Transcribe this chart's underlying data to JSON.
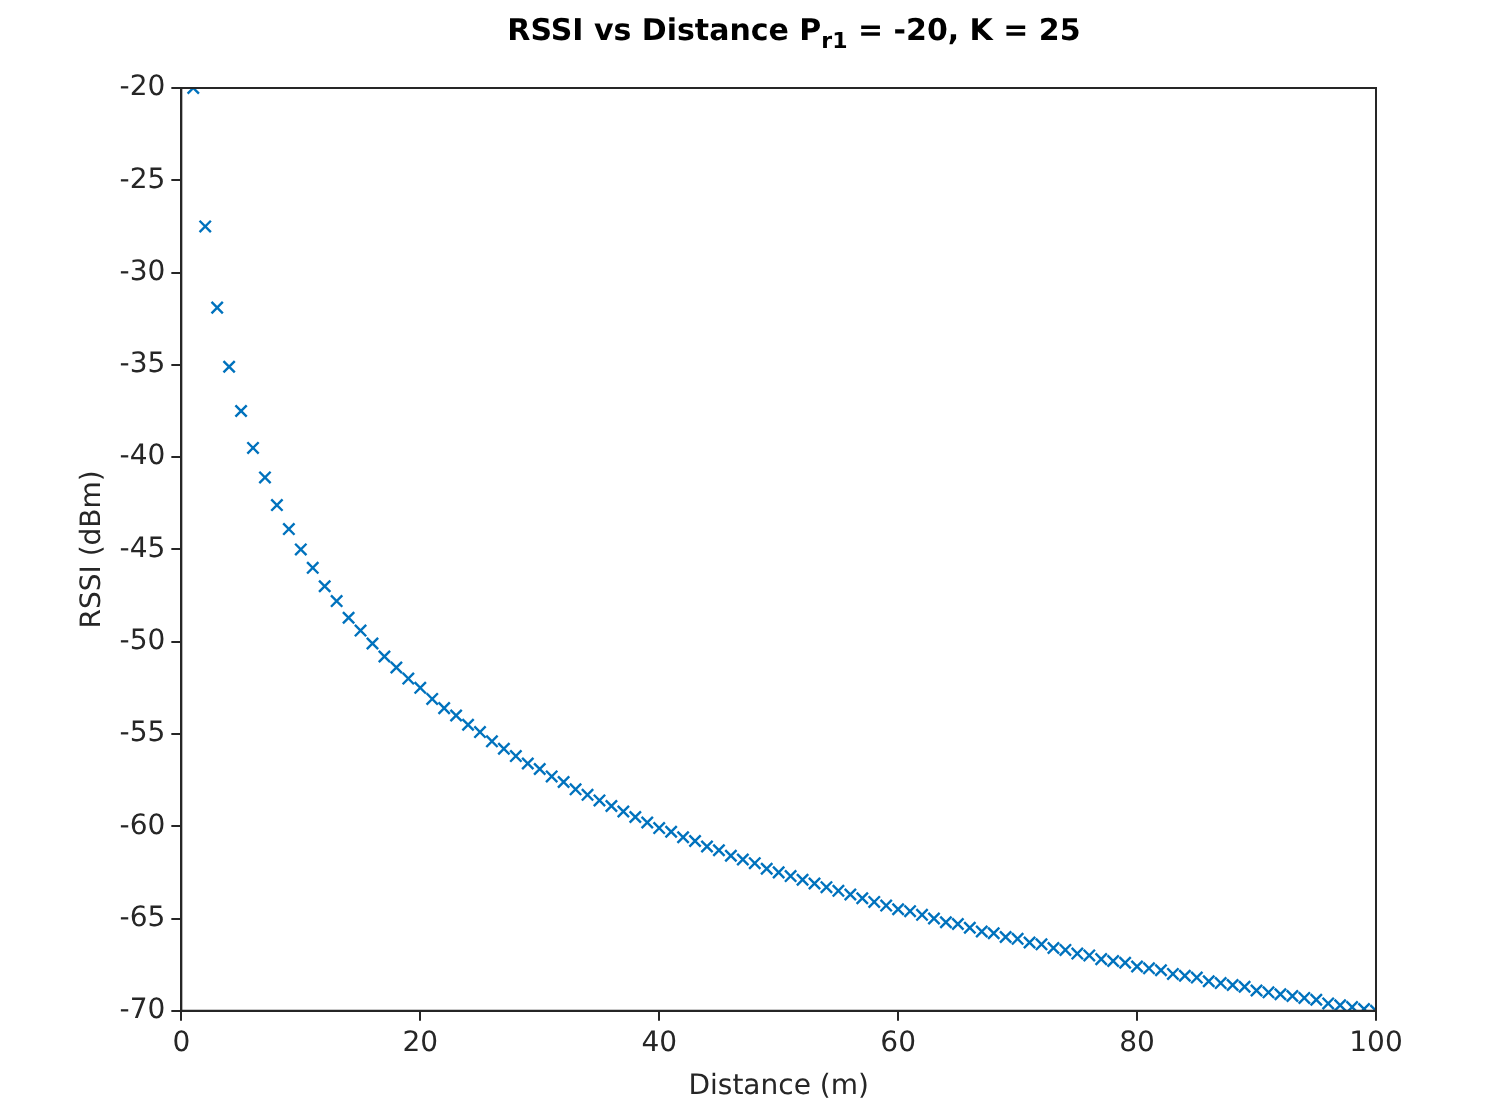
{
  "chart_data": {
    "type": "scatter",
    "title": "RSSI vs Distance P$_{r1}$ = -20, K = 25",
    "xlabel": "Distance (m)",
    "ylabel": "RSSI (dBm)",
    "x": [
      1,
      2,
      3,
      4,
      5,
      6,
      7,
      8,
      9,
      10,
      11,
      12,
      13,
      14,
      15,
      16,
      17,
      18,
      19,
      20,
      21,
      22,
      23,
      24,
      25,
      26,
      27,
      28,
      29,
      30,
      31,
      32,
      33,
      34,
      35,
      36,
      37,
      38,
      39,
      40,
      41,
      42,
      43,
      44,
      45,
      46,
      47,
      48,
      49,
      50,
      51,
      52,
      53,
      54,
      55,
      56,
      57,
      58,
      59,
      60,
      61,
      62,
      63,
      64,
      65,
      66,
      67,
      68,
      69,
      70,
      71,
      72,
      73,
      74,
      75,
      76,
      77,
      78,
      79,
      80,
      81,
      82,
      83,
      84,
      85,
      86,
      87,
      88,
      89,
      90,
      91,
      92,
      93,
      94,
      95,
      96,
      97,
      98,
      99,
      100
    ],
    "series": [
      {
        "color": "#0072bd",
        "values": [
          -20,
          -27.5,
          -31.9,
          -35.1,
          -37.5,
          -39.5,
          -41.1,
          -42.6,
          -43.9,
          -45,
          -46.0,
          -47.0,
          -47.8,
          -48.7,
          -49.4,
          -50.1,
          -50.8,
          -51.4,
          -52.0,
          -52.5,
          -53.1,
          -53.6,
          -54.0,
          -54.5,
          -54.9,
          -55.4,
          -55.8,
          -56.2,
          -56.6,
          -56.9,
          -57.3,
          -57.6,
          -58.0,
          -58.3,
          -58.6,
          -58.9,
          -59.2,
          -59.5,
          -59.8,
          -60.1,
          -60.3,
          -60.6,
          -60.8,
          -61.1,
          -61.3,
          -61.6,
          -61.8,
          -62.0,
          -62.3,
          -62.5,
          -62.7,
          -62.9,
          -63.1,
          -63.3,
          -63.5,
          -63.7,
          -63.9,
          -64.1,
          -64.3,
          -64.5,
          -64.6,
          -64.8,
          -65.0,
          -65.2,
          -65.3,
          -65.5,
          -65.7,
          -65.8,
          -66.0,
          -66.1,
          -66.3,
          -66.4,
          -66.6,
          -66.7,
          -66.9,
          -67.0,
          -67.2,
          -67.3,
          -67.4,
          -67.6,
          -67.7,
          -67.8,
          -68.0,
          -68.1,
          -68.2,
          -68.4,
          -68.5,
          -68.6,
          -68.7,
          -68.9,
          -69.0,
          -69.1,
          -69.2,
          -69.3,
          -69.4,
          -69.6,
          -69.7,
          -69.8,
          -69.9,
          -70
        ]
      }
    ],
    "xlim": [
      0,
      100
    ],
    "xticks": [
      0,
      20,
      40,
      60,
      80,
      100
    ],
    "ylim": [
      -70,
      -20
    ],
    "yticks": [
      -70,
      -65,
      -60,
      -55,
      -50,
      -45,
      -40,
      -35,
      -30,
      -25,
      -20
    ],
    "marker": "cross",
    "grid": false,
    "legend": false
  }
}
